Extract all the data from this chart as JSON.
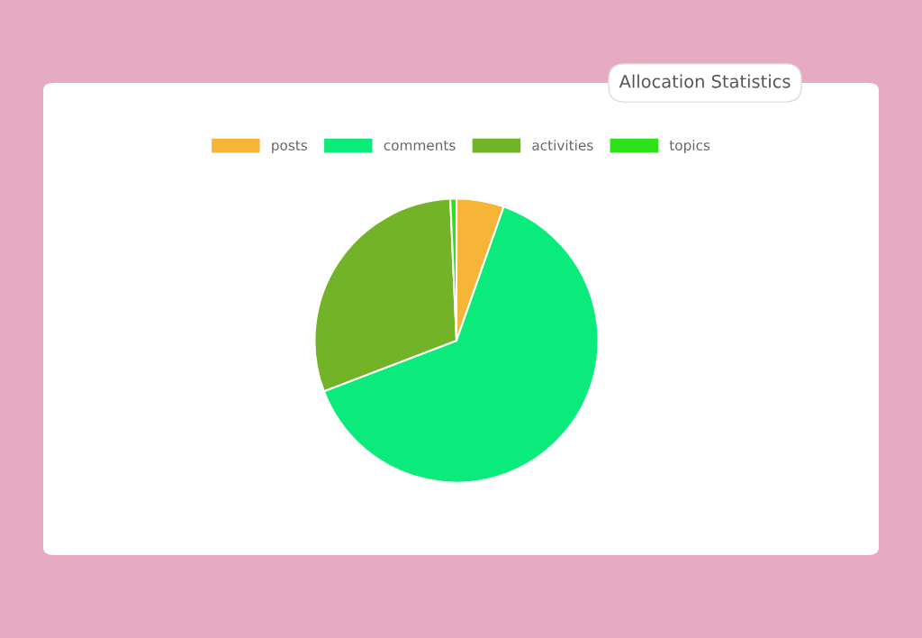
{
  "chart_data": {
    "type": "pie",
    "title": "Allocation Statistics",
    "categories": [
      "posts",
      "comments",
      "activities",
      "topics"
    ],
    "values": [
      5.4,
      63.8,
      30.1,
      0.7
    ],
    "colors": [
      "#f7b538",
      "#0beb7b",
      "#72b327",
      "#2ee21b"
    ],
    "legend": "top"
  }
}
